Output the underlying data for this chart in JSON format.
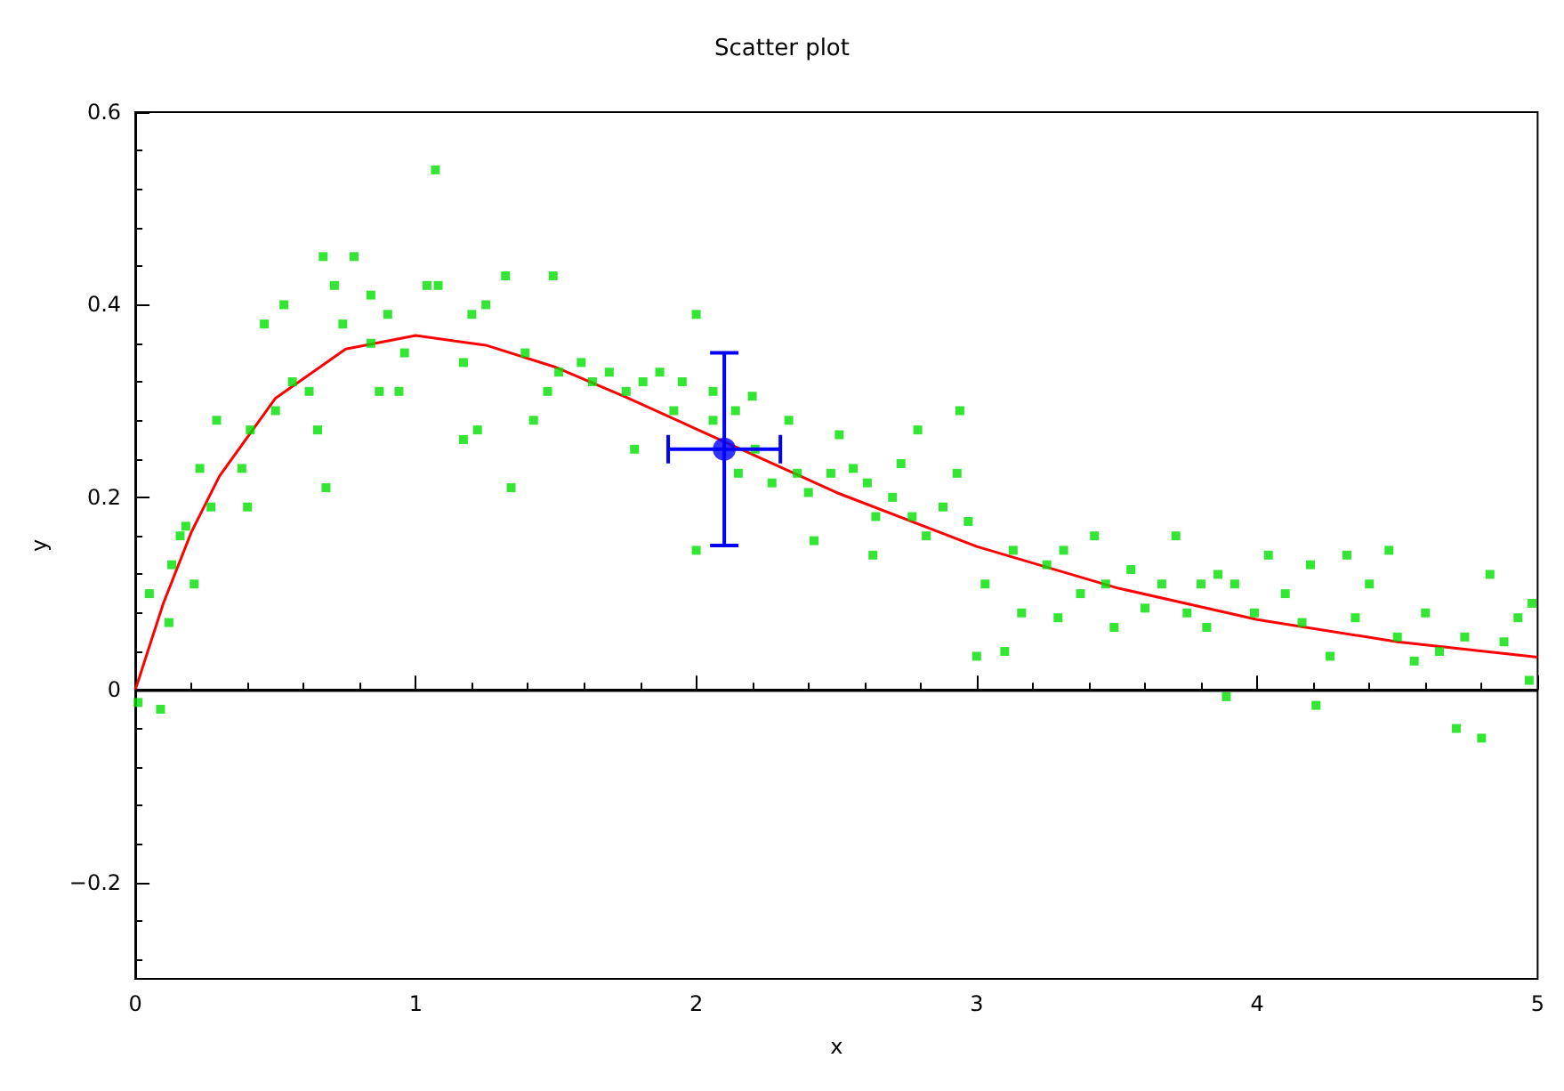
{
  "chart_data": {
    "type": "scatter",
    "title": "Scatter plot",
    "xlabel": "x",
    "ylabel": "y",
    "xlim": [
      0,
      5
    ],
    "xticks": [
      0,
      1,
      2,
      3,
      4,
      5
    ],
    "ylim": [
      -0.3,
      0.6
    ],
    "yticks": [
      -0.2,
      0,
      0.2,
      0.4,
      0.6
    ],
    "grid": false,
    "ref_lines": [
      {
        "axis": "y",
        "value": 0,
        "color": "#000000"
      }
    ],
    "series": [
      {
        "color": "#00e000",
        "marker": "square",
        "x": [
          0.01,
          0.09,
          0.05,
          0.12,
          0.13,
          0.16,
          0.18,
          0.21,
          0.23,
          0.29,
          0.27,
          0.38,
          0.41,
          0.4,
          0.46,
          0.53,
          0.5,
          0.56,
          0.62,
          0.65,
          0.68,
          0.67,
          0.71,
          0.78,
          0.74,
          0.84,
          0.84,
          0.87,
          0.94,
          0.9,
          0.96,
          1.04,
          1.08,
          1.07,
          1.17,
          1.17,
          1.22,
          1.2,
          1.25,
          1.32,
          1.34,
          1.39,
          1.42,
          1.49,
          1.47,
          1.51,
          1.59,
          1.63,
          1.69,
          1.75,
          1.78,
          1.81,
          1.87,
          1.92,
          1.95,
          2.0,
          2.0,
          2.06,
          2.06,
          2.14,
          2.15,
          2.2,
          2.21,
          2.27,
          2.33,
          2.36,
          2.4,
          2.42,
          2.48,
          2.51,
          2.56,
          2.61,
          2.64,
          2.63,
          2.7,
          2.73,
          2.77,
          2.79,
          2.82,
          2.88,
          2.93,
          2.97,
          2.94,
          3.0,
          3.1,
          3.03,
          3.13,
          3.16,
          3.25,
          3.31,
          3.29,
          3.37,
          3.42,
          3.46,
          3.49,
          3.55,
          3.6,
          3.66,
          3.71,
          3.75,
          3.8,
          3.82,
          3.86,
          3.89,
          3.92,
          3.99,
          4.04,
          4.1,
          4.16,
          4.21,
          4.19,
          4.26,
          4.32,
          4.35,
          4.4,
          4.47,
          4.5,
          4.56,
          4.6,
          4.65,
          4.71,
          4.74,
          4.8,
          4.83,
          4.88,
          4.93,
          4.97,
          4.98
        ],
        "values": [
          -0.013,
          -0.02,
          0.1,
          0.07,
          0.13,
          0.16,
          0.17,
          0.11,
          0.23,
          0.28,
          0.19,
          0.23,
          0.27,
          0.19,
          0.38,
          0.4,
          0.29,
          0.32,
          0.31,
          0.27,
          0.21,
          0.45,
          0.42,
          0.45,
          0.38,
          0.41,
          0.36,
          0.31,
          0.31,
          0.39,
          0.35,
          0.42,
          0.42,
          0.54,
          0.34,
          0.26,
          0.27,
          0.39,
          0.4,
          0.43,
          0.21,
          0.35,
          0.28,
          0.43,
          0.31,
          0.33,
          0.34,
          0.32,
          0.33,
          0.31,
          0.25,
          0.32,
          0.33,
          0.29,
          0.32,
          0.39,
          0.145,
          0.31,
          0.28,
          0.29,
          0.225,
          0.305,
          0.25,
          0.215,
          0.28,
          0.225,
          0.205,
          0.155,
          0.225,
          0.265,
          0.23,
          0.215,
          0.18,
          0.14,
          0.2,
          0.235,
          0.18,
          0.27,
          0.16,
          0.19,
          0.225,
          0.175,
          0.29,
          0.035,
          0.04,
          0.11,
          0.145,
          0.08,
          0.13,
          0.145,
          0.075,
          0.1,
          0.16,
          0.11,
          0.065,
          0.125,
          0.085,
          0.11,
          0.16,
          0.08,
          0.11,
          0.065,
          0.12,
          -0.007,
          0.11,
          0.08,
          0.14,
          0.1,
          0.07,
          -0.016,
          0.13,
          0.035,
          0.14,
          0.075,
          0.11,
          0.145,
          0.055,
          0.03,
          0.08,
          0.04,
          -0.04,
          0.055,
          -0.05,
          0.12,
          0.05,
          0.075,
          0.01,
          0.09
        ]
      },
      {
        "type": "line",
        "color": "#ff0000",
        "marker": "none",
        "x": [
          0,
          0.1,
          0.2,
          0.3,
          0.5,
          0.75,
          1,
          1.25,
          1.5,
          1.75,
          2,
          2.5,
          3,
          3.5,
          4,
          4.5,
          5
        ],
        "values": [
          0,
          0.09,
          0.164,
          0.222,
          0.303,
          0.354,
          0.368,
          0.358,
          0.335,
          0.304,
          0.271,
          0.205,
          0.149,
          0.106,
          0.073,
          0.05,
          0.034
        ]
      },
      {
        "type": "scatter",
        "color": "#0000ff",
        "marker": "circle",
        "x": [
          2.1
        ],
        "values": [
          0.25
        ],
        "errors": [
          0.1
        ],
        "xerrors": [
          0.2
        ]
      }
    ]
  }
}
